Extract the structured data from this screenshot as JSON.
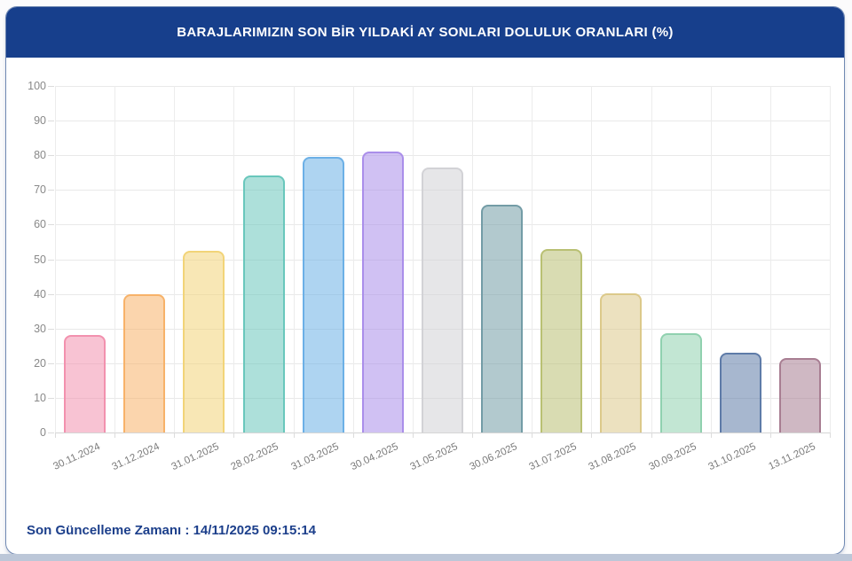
{
  "page": {
    "title": "BARAJLARIMIZIN SON BİR YILDAKİ AY SONLARI DOLULUK ORANLARI (%)",
    "footer": {
      "label": "Son Güncelleme Zamanı",
      "separator": " : ",
      "value": "14/11/2025 09:15:14"
    },
    "colors": {
      "header_bg": "#173f8c",
      "header_text": "#ffffff",
      "card_border": "#7089b3",
      "footer_text": "#1c3f8b",
      "grid_line": "#e9e9e9",
      "axis_line": "#d5d5d5",
      "tick_text": "#898989",
      "page_bottom_strip": "#bcc7d8"
    }
  },
  "chart_data": {
    "type": "bar",
    "title": "BARAJLARIMIZIN SON BİR YILDAKİ AY SONLARI DOLULUK ORANLARI (%)",
    "xlabel": "",
    "ylabel": "",
    "ylim": [
      0,
      100
    ],
    "yticks": [
      0,
      10,
      20,
      30,
      40,
      50,
      60,
      70,
      80,
      90,
      100
    ],
    "grid": true,
    "legend": false,
    "categories": [
      "30.11.2024",
      "31.12.2024",
      "31.01.2025",
      "28.02.2025",
      "31.03.2025",
      "30.04.2025",
      "31.05.2025",
      "30.06.2025",
      "31.07.2025",
      "31.08.2025",
      "30.09.2025",
      "31.10.2025",
      "13.11.2025"
    ],
    "values": [
      28.1,
      40.0,
      52.4,
      74.2,
      79.5,
      81.0,
      76.4,
      65.8,
      53.0,
      40.1,
      28.7,
      22.9,
      21.4
    ],
    "bar_colors": [
      {
        "fill": "#f291ae8c",
        "border": "#f291ae"
      },
      {
        "fill": "#f7b2698c",
        "border": "#f7b269"
      },
      {
        "fill": "#f2d4788c",
        "border": "#f2d478"
      },
      {
        "fill": "#69c7bc8c",
        "border": "#69c7bc"
      },
      {
        "fill": "#6cb0e68c",
        "border": "#6cb0e6"
      },
      {
        "fill": "#aa8eea8c",
        "border": "#aa8eea"
      },
      {
        "fill": "#d2d2d68c",
        "border": "#d2d2d6"
      },
      {
        "fill": "#739ca68c",
        "border": "#739ca6"
      },
      {
        "fill": "#b9c0738c",
        "border": "#b9c073"
      },
      {
        "fill": "#dcc98a8c",
        "border": "#dcc98a"
      },
      {
        "fill": "#90d1af8c",
        "border": "#90d1af"
      },
      {
        "fill": "#5e7ba88c",
        "border": "#5e7ba8"
      },
      {
        "fill": "#a87e928c",
        "border": "#a87e92"
      }
    ]
  }
}
